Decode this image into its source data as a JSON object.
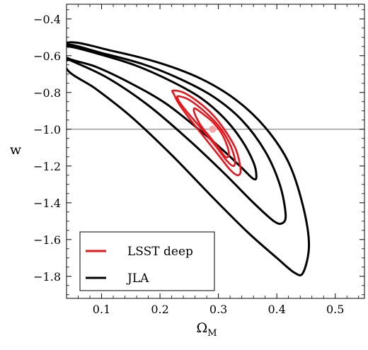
{
  "chart_data": {
    "type": "contour",
    "xlabel": "Ω",
    "xlabel_sub": "M",
    "ylabel": "w",
    "xlim": [
      0.04,
      0.55
    ],
    "ylim": [
      -1.92,
      -0.32
    ],
    "x_ticks": [
      0.1,
      0.2,
      0.3,
      0.4,
      0.5
    ],
    "x_tick_labels": [
      "0.1",
      "0.2",
      "0.3",
      "0.4",
      "0.5"
    ],
    "y_ticks": [
      -0.4,
      -0.6,
      -0.8,
      -1.0,
      -1.2,
      -1.4,
      -1.6,
      -1.8
    ],
    "y_tick_labels": [
      "−0.4",
      "−0.6",
      "−0.8",
      "−1.0",
      "−1.2",
      "−1.4",
      "−1.6",
      "−1.8"
    ],
    "reference_line_w": -1.0,
    "fiducial_point": {
      "x": 0.29,
      "y": -1.0,
      "color": "#f4a6a8"
    },
    "legend": {
      "placement": "bottom-left",
      "entries": [
        {
          "label": "LSST deep",
          "color": "#e8141b"
        },
        {
          "label": "JLA",
          "color": "#000000"
        }
      ]
    },
    "series": [
      {
        "name": "JLA",
        "color": "#000000",
        "contours": [
          {
            "level": "1σ",
            "points": [
              [
                0.04,
                -0.55
              ],
              [
                0.1,
                -0.595
              ],
              [
                0.16,
                -0.655
              ],
              [
                0.22,
                -0.74
              ],
              [
                0.27,
                -0.83
              ],
              [
                0.31,
                -0.94
              ],
              [
                0.34,
                -1.06
              ],
              [
                0.36,
                -1.18
              ],
              [
                0.365,
                -1.255
              ],
              [
                0.36,
                -1.27
              ],
              [
                0.34,
                -1.21
              ],
              [
                0.31,
                -1.12
              ],
              [
                0.27,
                -1.01
              ],
              [
                0.21,
                -0.86
              ],
              [
                0.15,
                -0.75
              ],
              [
                0.09,
                -0.66
              ],
              [
                0.04,
                -0.61
              ]
            ]
          },
          {
            "level": "2σ",
            "points": [
              [
                0.04,
                -0.54
              ],
              [
                0.1,
                -0.585
              ],
              [
                0.17,
                -0.645
              ],
              [
                0.23,
                -0.72
              ],
              [
                0.29,
                -0.82
              ],
              [
                0.34,
                -0.95
              ],
              [
                0.38,
                -1.12
              ],
              [
                0.405,
                -1.3
              ],
              [
                0.415,
                -1.46
              ],
              [
                0.41,
                -1.51
              ],
              [
                0.395,
                -1.5
              ],
              [
                0.36,
                -1.4
              ],
              [
                0.31,
                -1.24
              ],
              [
                0.25,
                -1.06
              ],
              [
                0.18,
                -0.87
              ],
              [
                0.11,
                -0.72
              ],
              [
                0.05,
                -0.63
              ],
              [
                0.04,
                -0.62
              ]
            ]
          },
          {
            "level": "3σ",
            "points": [
              [
                0.04,
                -0.53
              ],
              [
                0.12,
                -0.575
              ],
              [
                0.2,
                -0.64
              ],
              [
                0.27,
                -0.725
              ],
              [
                0.33,
                -0.84
              ],
              [
                0.38,
                -0.99
              ],
              [
                0.42,
                -1.18
              ],
              [
                0.445,
                -1.42
              ],
              [
                0.455,
                -1.63
              ],
              [
                0.445,
                -1.78
              ],
              [
                0.43,
                -1.78
              ],
              [
                0.4,
                -1.7
              ],
              [
                0.35,
                -1.56
              ],
              [
                0.29,
                -1.37
              ],
              [
                0.22,
                -1.14
              ],
              [
                0.15,
                -0.93
              ],
              [
                0.09,
                -0.78
              ],
              [
                0.04,
                -0.67
              ]
            ]
          }
        ]
      },
      {
        "name": "LSST deep",
        "color": "#e8141b",
        "contours": [
          {
            "level": "1σ",
            "points": [
              [
                0.262,
                -0.89
              ],
              [
                0.275,
                -0.92
              ],
              [
                0.29,
                -0.96
              ],
              [
                0.305,
                -1.02
              ],
              [
                0.315,
                -1.09
              ],
              [
                0.318,
                -1.14
              ],
              [
                0.312,
                -1.15
              ],
              [
                0.3,
                -1.1
              ],
              [
                0.285,
                -1.04
              ],
              [
                0.27,
                -0.98
              ],
              [
                0.26,
                -0.92
              ],
              [
                0.258,
                -0.89
              ]
            ]
          },
          {
            "level": "2σ",
            "points": [
              [
                0.232,
                -0.82
              ],
              [
                0.25,
                -0.84
              ],
              [
                0.275,
                -0.9
              ],
              [
                0.3,
                -0.98
              ],
              [
                0.318,
                -1.07
              ],
              [
                0.328,
                -1.16
              ],
              [
                0.326,
                -1.2
              ],
              [
                0.314,
                -1.17
              ],
              [
                0.295,
                -1.09
              ],
              [
                0.272,
                -1.0
              ],
              [
                0.25,
                -0.92
              ],
              [
                0.235,
                -0.86
              ],
              [
                0.23,
                -0.83
              ]
            ]
          },
          {
            "level": "3σ",
            "points": [
              [
                0.222,
                -0.79
              ],
              [
                0.24,
                -0.8
              ],
              [
                0.265,
                -0.85
              ],
              [
                0.29,
                -0.92
              ],
              [
                0.312,
                -1.01
              ],
              [
                0.33,
                -1.11
              ],
              [
                0.338,
                -1.22
              ],
              [
                0.333,
                -1.25
              ],
              [
                0.32,
                -1.22
              ],
              [
                0.3,
                -1.14
              ],
              [
                0.275,
                -1.04
              ],
              [
                0.25,
                -0.94
              ],
              [
                0.232,
                -0.86
              ],
              [
                0.224,
                -0.81
              ]
            ]
          }
        ]
      }
    ]
  }
}
